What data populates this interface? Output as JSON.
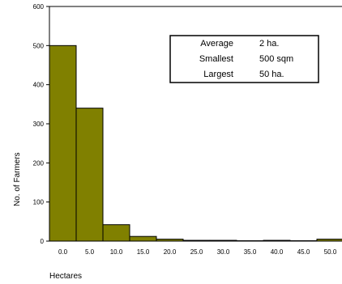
{
  "chart_data": {
    "type": "bar",
    "categories": [
      "0.0",
      "5.0",
      "10.0",
      "15.0",
      "20.0",
      "25.0",
      "30.0",
      "35.0",
      "40.0",
      "45.0",
      "50.0"
    ],
    "values": [
      500,
      340,
      42,
      12,
      5,
      2,
      2,
      1,
      2,
      1,
      5
    ],
    "title": "",
    "xlabel": "Hectares",
    "ylabel": "No. of Farmers",
    "ylim": [
      0,
      600
    ],
    "yticks": [
      0,
      100,
      200,
      300,
      400,
      500,
      600
    ],
    "grid": false,
    "bar_color": "#808000",
    "legend_placement": "top-right",
    "stats_box": [
      {
        "label": "Average",
        "value": "2 ha."
      },
      {
        "label": "Smallest",
        "value": "500 sqm"
      },
      {
        "label": "Largest",
        "value": "50 ha."
      }
    ]
  }
}
